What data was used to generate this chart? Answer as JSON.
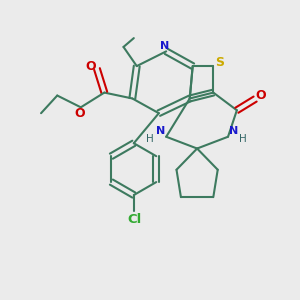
{
  "bg_color": "#ebebeb",
  "bond_color": "#3d7a5f",
  "bond_width": 1.5,
  "atom_colors": {
    "N": "#1818cc",
    "S": "#ccaa00",
    "O": "#cc0000",
    "Cl": "#33aa33",
    "C": "#3d7a5f"
  },
  "figsize": [
    3.0,
    3.0
  ],
  "dpi": 100
}
